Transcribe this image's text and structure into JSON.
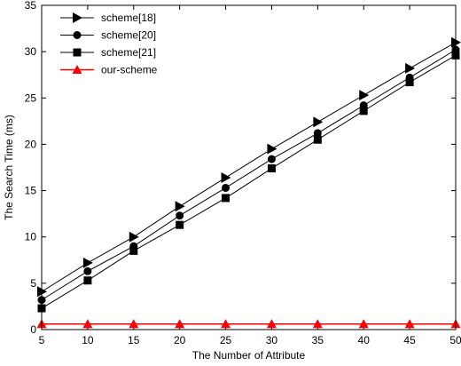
{
  "chart_data": {
    "type": "line",
    "xlabel": "The Number of Attribute",
    "ylabel": "The Search Time (ms)",
    "x": [
      5,
      10,
      15,
      20,
      25,
      30,
      35,
      40,
      45,
      50
    ],
    "xlim": [
      5,
      50
    ],
    "ylim": [
      0,
      35
    ],
    "xticks": [
      5,
      10,
      15,
      20,
      25,
      30,
      35,
      40,
      45,
      50
    ],
    "yticks": [
      0,
      5,
      10,
      15,
      20,
      25,
      30,
      35
    ],
    "grid": false,
    "legend_position": "top-left",
    "series": [
      {
        "name": "scheme[18]",
        "marker": "triangle-right",
        "color": "#000000",
        "values": [
          4.1,
          7.2,
          10.0,
          13.3,
          16.4,
          19.5,
          22.4,
          25.3,
          28.2,
          31.0
        ]
      },
      {
        "name": "scheme[20]",
        "marker": "circle",
        "color": "#000000",
        "values": [
          3.2,
          6.3,
          9.0,
          12.3,
          15.3,
          18.4,
          21.2,
          24.2,
          27.2,
          30.2
        ]
      },
      {
        "name": "scheme[21]",
        "marker": "square",
        "color": "#000000",
        "values": [
          2.3,
          5.3,
          8.5,
          11.3,
          14.2,
          17.4,
          20.5,
          23.6,
          26.7,
          29.6
        ]
      },
      {
        "name": "our-scheme",
        "marker": "triangle-up",
        "color": "#ff0000",
        "values": [
          0.6,
          0.6,
          0.6,
          0.6,
          0.6,
          0.6,
          0.6,
          0.6,
          0.6,
          0.6
        ]
      }
    ]
  }
}
